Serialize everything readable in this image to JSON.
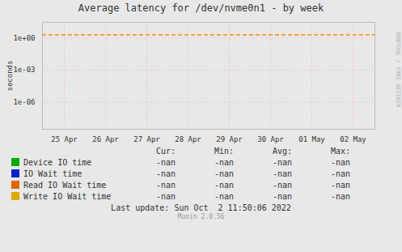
{
  "chart_data": {
    "type": "line",
    "title": "Average latency for /dev/nvme0n1 - by week",
    "ylabel": "seconds",
    "categories": [
      "25 Apr",
      "26 Apr",
      "27 Apr",
      "28 Apr",
      "29 Apr",
      "30 Apr",
      "01 May",
      "02 May"
    ],
    "series": [
      {
        "name": "Device IO time",
        "color": "#00aa00",
        "values": [
          null,
          null,
          null,
          null,
          null,
          null,
          null,
          null
        ]
      },
      {
        "name": "IO Wait time",
        "color": "#0022cc",
        "values": [
          null,
          null,
          null,
          null,
          null,
          null,
          null,
          null
        ]
      },
      {
        "name": "Read IO Wait time",
        "color": "#dd6600",
        "values": [
          null,
          null,
          null,
          null,
          null,
          null,
          null,
          null
        ]
      },
      {
        "name": "Write IO Wait time",
        "color": "#ddaa00",
        "values": [
          null,
          null,
          null,
          null,
          null,
          null,
          null,
          null
        ]
      }
    ],
    "log": "y",
    "ylim": [
      3e-09,
      30.0
    ],
    "yticks": [
      {
        "value": 1e-06,
        "label": "1e-06"
      },
      {
        "value": 0.001,
        "label": "1e-03"
      },
      {
        "value": 1.0,
        "label": "1e+00"
      }
    ],
    "grid": true,
    "reference_lines": [
      {
        "value": 2.0,
        "color": "#ff8800",
        "line_style": "dashed"
      }
    ],
    "legend_table": {
      "headers": [
        "Cur:",
        "Min:",
        "Avg:",
        "Max:"
      ],
      "value": "-nan"
    },
    "annotations": [
      "Last update: Sun Oct  2 11:50:06 2022",
      "Munin 2.0.56",
      "RRDTOOL / TOBI OETIKER"
    ]
  }
}
